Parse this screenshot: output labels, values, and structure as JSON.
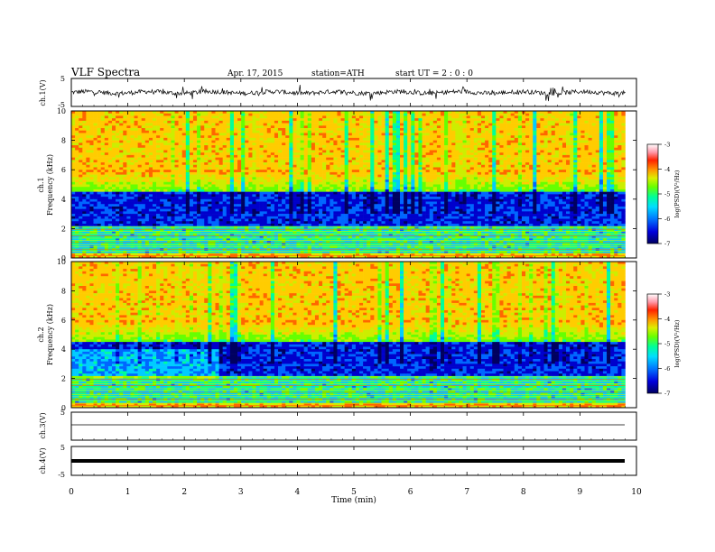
{
  "header": {
    "title": "VLF  Spectra",
    "date": "Apr. 17, 2015",
    "station": "station=ATH",
    "start_ut": "start  UT  =   2  : 0   : 0"
  },
  "colors": {
    "colormap": [
      "#000060",
      "#0000cc",
      "#0066ff",
      "#00ccff",
      "#00ff99",
      "#66ff00",
      "#ccee00",
      "#ffcc00",
      "#ff6600",
      "#ff2200",
      "#ffffff"
    ]
  },
  "chart_data": [
    {
      "type": "line",
      "panel": "ch1-waveform",
      "ylabel": "ch.1(V)",
      "ylim": [
        -5,
        5
      ],
      "yticks": [
        "5",
        "-5"
      ],
      "description_values": {
        "mean": 0,
        "amplitude_approx": 1.5
      }
    },
    {
      "type": "heatmap",
      "panel": "ch1-spectrogram",
      "ylabel_lines": [
        "ch.1",
        "Frequency  (kHz)"
      ],
      "ylim": [
        0,
        10
      ],
      "yticks": [
        "0",
        "2",
        "4",
        "6",
        "8",
        "10"
      ],
      "colorbar": {
        "label": "log(PSD)(V²/Hz)",
        "ticks": [
          "-3",
          "-4",
          "-5",
          "-6",
          "-7"
        ],
        "range": [
          -7,
          -3
        ]
      }
    },
    {
      "type": "heatmap",
      "panel": "ch2-spectrogram",
      "ylabel_lines": [
        "ch.2",
        "Frequency  (kHz)"
      ],
      "ylim": [
        0,
        10
      ],
      "yticks": [
        "0",
        "2",
        "4",
        "6",
        "8",
        "10"
      ],
      "colorbar": {
        "label": "log(PSD)(V²/Hz)",
        "ticks": [
          "-3",
          "-4",
          "-5",
          "-6",
          "-7"
        ],
        "range": [
          -7,
          -3
        ]
      }
    },
    {
      "type": "line",
      "panel": "ch3-waveform",
      "ylabel": "ch.3(V)",
      "ylim": [
        -5,
        5
      ],
      "yticks": [
        "5"
      ]
    },
    {
      "type": "line",
      "panel": "ch4-waveform",
      "ylabel": "ch.4(V)",
      "ylim": [
        -5,
        5
      ],
      "yticks": [
        "5",
        "-5"
      ]
    },
    {
      "type": "axis",
      "panel": "time-axis",
      "xlabel": "Time  (min)",
      "xlim": [
        0,
        10
      ],
      "xticks": [
        "0",
        "1",
        "2",
        "3",
        "4",
        "5",
        "6",
        "7",
        "8",
        "9",
        "10"
      ],
      "data_end_min": 9.8
    }
  ]
}
